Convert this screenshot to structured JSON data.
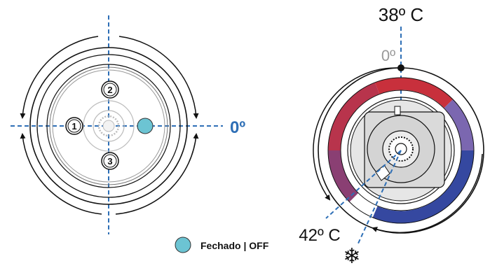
{
  "left_dial": {
    "positions": [
      {
        "label": "1"
      },
      {
        "label": "2"
      },
      {
        "label": "3"
      }
    ],
    "zero_label": "0º"
  },
  "right_dial": {
    "top_temp": "38º C",
    "zero_label": "0º",
    "bottom_temp": "42º C",
    "snowflake_symbol": "❄"
  },
  "legend": {
    "off_label": "Fechado | OFF"
  },
  "colors": {
    "axis_blue": "#2e6fb6",
    "off_marker": "#6cc4d3",
    "hot_red": "#c8303c",
    "cold_blue": "#3548a0",
    "arc_purple": "#8a3f73",
    "dial_gray": "#d9d9d9"
  }
}
